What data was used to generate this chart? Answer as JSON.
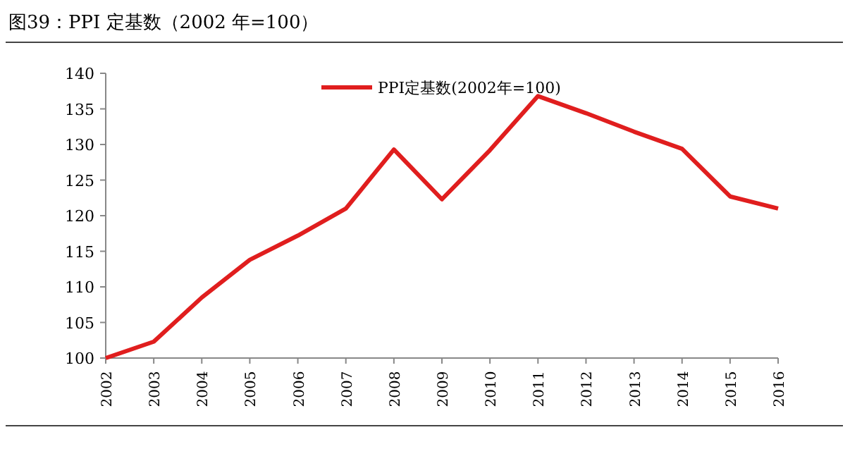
{
  "chart_data": {
    "type": "line",
    "title": "图39：PPI 定基数（2002 年=100）",
    "categories": [
      "2002",
      "2003",
      "2004",
      "2005",
      "2006",
      "2007",
      "2008",
      "2009",
      "2010",
      "2011",
      "2012",
      "2013",
      "2014",
      "2015",
      "2016"
    ],
    "series": [
      {
        "name": "PPI定基数(2002年=100)",
        "color": "#e01e1e",
        "values": [
          100,
          102.3,
          108.5,
          113.8,
          117.2,
          121,
          129.3,
          122.3,
          129.2,
          136.8,
          134.4,
          131.8,
          129.4,
          122.7,
          121
        ]
      }
    ],
    "ylim": [
      100,
      140
    ],
    "yticks": [
      100,
      105,
      110,
      115,
      120,
      125,
      130,
      135,
      140
    ],
    "legend": "top",
    "marker": "none",
    "line_style": "solid",
    "grid": false
  }
}
